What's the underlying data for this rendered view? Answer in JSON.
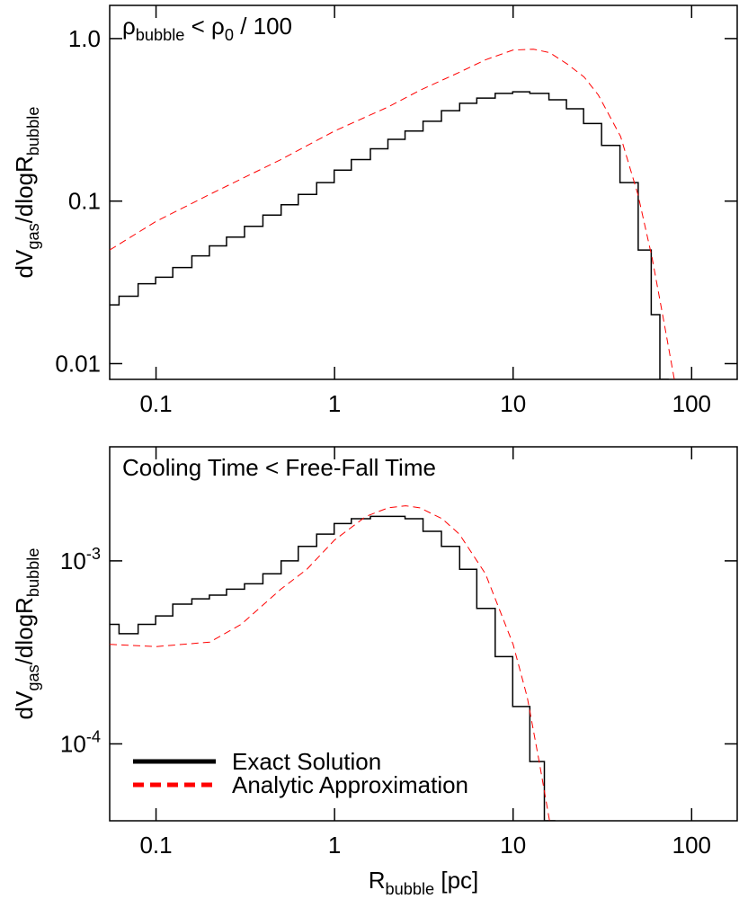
{
  "chart_data": [
    {
      "type": "line",
      "title": "ρ_{bubble} < ρ_{0} / 100",
      "ylabel": "dV_{gas}/dlogR_{bubble}",
      "xscale": "log",
      "yscale": "log",
      "xlim": [
        0.055,
        180
      ],
      "ylim": [
        0.008,
        1.6
      ],
      "xticks": [
        0.1,
        1,
        10,
        100
      ],
      "yticks": [
        0.01,
        0.1,
        {
          "value": 1,
          "label": "1.0"
        }
      ],
      "series": [
        {
          "color": "#000000",
          "style": "solid",
          "drawstyle": "steps",
          "x": [
            0.055,
            0.07,
            0.09,
            0.11,
            0.14,
            0.18,
            0.22,
            0.28,
            0.35,
            0.45,
            0.56,
            0.7,
            0.9,
            1.1,
            1.4,
            1.8,
            2.2,
            2.8,
            3.5,
            4.5,
            5.6,
            7,
            9,
            11,
            14,
            18,
            22,
            28,
            35,
            45,
            56,
            63,
            70
          ],
          "values": [
            0.023,
            0.026,
            0.031,
            0.034,
            0.039,
            0.046,
            0.053,
            0.06,
            0.07,
            0.082,
            0.095,
            0.11,
            0.13,
            0.155,
            0.18,
            0.21,
            0.24,
            0.27,
            0.31,
            0.36,
            0.4,
            0.43,
            0.46,
            0.47,
            0.46,
            0.42,
            0.37,
            0.3,
            0.22,
            0.13,
            0.05,
            0.02,
            0.008
          ]
        },
        {
          "color": "#ff0000",
          "style": "dashed",
          "drawstyle": "line",
          "x": [
            0.055,
            0.1,
            0.2,
            0.5,
            1,
            2,
            3,
            5,
            7,
            10,
            13,
            16,
            20,
            25,
            30,
            40,
            50,
            60,
            70,
            80
          ],
          "values": [
            0.05,
            0.075,
            0.11,
            0.18,
            0.27,
            0.38,
            0.48,
            0.62,
            0.74,
            0.85,
            0.86,
            0.82,
            0.7,
            0.58,
            0.45,
            0.25,
            0.11,
            0.045,
            0.018,
            0.008
          ]
        }
      ]
    },
    {
      "type": "line",
      "title": "Cooling Time < Free-Fall Time",
      "ylabel": "dV_{gas}/dlogR_{bubble}",
      "xlabel": "R_{bubble} [pc]",
      "xscale": "log",
      "yscale": "log",
      "xlim": [
        0.055,
        180
      ],
      "ylim": [
        3.8e-05,
        0.0042
      ],
      "xticks": [
        0.1,
        1,
        10,
        100
      ],
      "yticks": [
        {
          "value": 0.0001,
          "label": "10^{-4}"
        },
        {
          "value": 0.001,
          "label": "10^{-3}"
        }
      ],
      "legend": "lower left",
      "series": [
        {
          "name": "Exact Solution",
          "color": "#000000",
          "style": "solid",
          "drawstyle": "steps",
          "x": [
            0.055,
            0.07,
            0.09,
            0.11,
            0.14,
            0.18,
            0.22,
            0.28,
            0.35,
            0.45,
            0.56,
            0.7,
            0.9,
            1.1,
            1.4,
            1.8,
            2.2,
            2.8,
            3.5,
            4.5,
            5.6,
            7,
            9,
            11,
            14,
            16
          ],
          "values": [
            0.00045,
            0.0004,
            0.00045,
            0.0005,
            0.00058,
            0.00062,
            0.00065,
            0.0007,
            0.00075,
            0.00085,
            0.001,
            0.0012,
            0.0014,
            0.0016,
            0.0017,
            0.00175,
            0.00175,
            0.0017,
            0.00145,
            0.0012,
            0.0009,
            0.00055,
            0.0003,
            0.00016,
            8e-05,
            3.8e-05
          ]
        },
        {
          "name": "Analytic Approximation",
          "color": "#ff0000",
          "style": "dashed",
          "drawstyle": "line",
          "x": [
            0.055,
            0.1,
            0.2,
            0.3,
            0.5,
            0.7,
            1,
            1.5,
            2,
            2.5,
            3,
            4,
            5,
            7,
            10,
            12,
            14,
            16
          ],
          "values": [
            0.00035,
            0.00034,
            0.00036,
            0.00045,
            0.0007,
            0.0009,
            0.0013,
            0.00175,
            0.00195,
            0.002,
            0.00195,
            0.0017,
            0.0014,
            0.00085,
            0.00035,
            0.00018,
            8e-05,
            3.8e-05
          ]
        }
      ]
    }
  ]
}
